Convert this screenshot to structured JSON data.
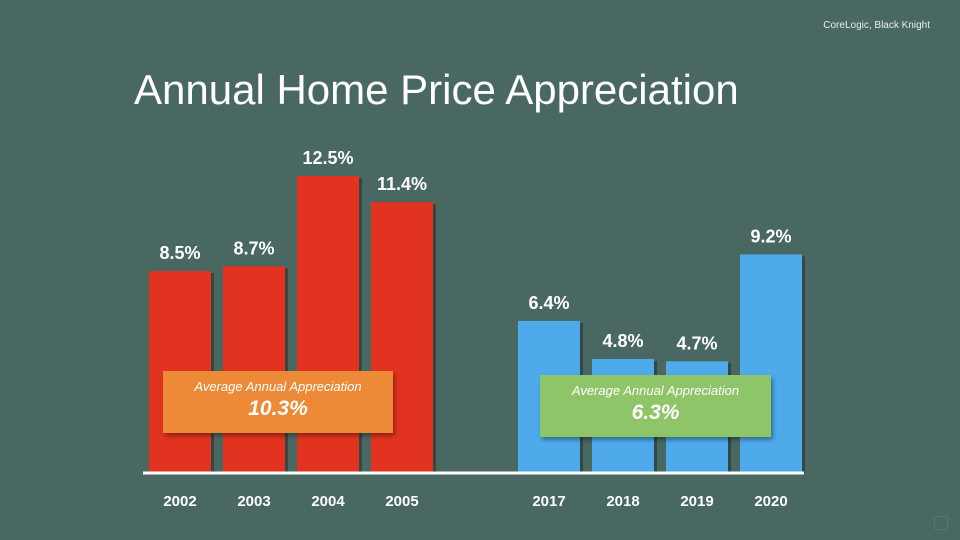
{
  "source": "CoreLogic, Black Knight",
  "title": "Annual Home Price Appreciation",
  "colors": {
    "background": "#4a6862",
    "red_bar": "#e23320",
    "blue_bar": "#4eaaeb",
    "orange_callout": "#ec8a38",
    "green_callout": "#8fc569"
  },
  "callouts": {
    "left": {
      "label": "Average Annual Appreciation",
      "value": "10.3%"
    },
    "right": {
      "label": "Average Annual Appreciation",
      "value": "6.3%"
    }
  },
  "chart_data": {
    "type": "bar",
    "title": "Annual Home Price Appreciation",
    "categories": [
      "2002",
      "2003",
      "2004",
      "2005",
      "2017",
      "2018",
      "2019",
      "2020"
    ],
    "values": [
      8.5,
      8.7,
      12.5,
      11.4,
      6.4,
      4.8,
      4.7,
      9.2
    ],
    "data_labels": [
      "8.5%",
      "8.7%",
      "12.5%",
      "11.4%",
      "6.4%",
      "4.8%",
      "4.7%",
      "9.2%"
    ],
    "groups": [
      {
        "color": "red",
        "categories": [
          "2002",
          "2003",
          "2004",
          "2005"
        ]
      },
      {
        "color": "blue",
        "categories": [
          "2017",
          "2018",
          "2019",
          "2020"
        ]
      }
    ],
    "ylim": [
      0,
      12.5
    ],
    "grid": false,
    "xlabel": "",
    "ylabel": ""
  }
}
